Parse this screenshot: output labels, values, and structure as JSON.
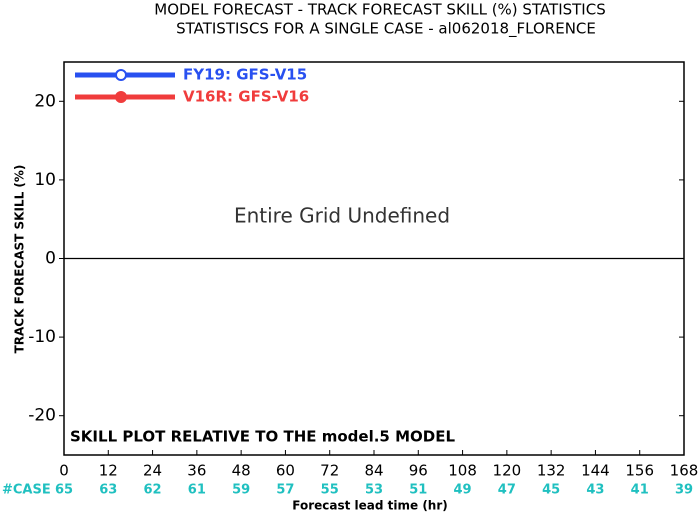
{
  "chart_data": {
    "type": "line",
    "title": "MODEL FORECAST - TRACK FORECAST SKILL (%) STATISTICS",
    "subtitle": "STATISTISCS FOR A SINGLE CASE - al062018_FLORENCE",
    "y_label": "TRACK FORECAST SKILL (%)",
    "x_label": "Forecast lead time (hr)",
    "annotations": [
      "Entire Grid Undefined",
      "SKILL PLOT RELATIVE TO THE model.5 MODEL"
    ],
    "case_label": "#CASE",
    "cases": [
      65,
      63,
      62,
      61,
      59,
      57,
      55,
      53,
      51,
      49,
      47,
      45,
      43,
      41,
      39
    ],
    "x": [
      0,
      12,
      24,
      36,
      48,
      60,
      72,
      84,
      96,
      108,
      120,
      132,
      144,
      156,
      168
    ],
    "xlim": [
      0,
      168
    ],
    "xticks": [
      0,
      12,
      24,
      36,
      48,
      60,
      72,
      84,
      96,
      108,
      120,
      132,
      144,
      156,
      168
    ],
    "ylim": [
      -25,
      25
    ],
    "yticks": [
      -20,
      -10,
      0,
      10,
      20
    ],
    "series": [
      {
        "name": "FY19: GFS-V15",
        "color": "#2850f0",
        "values": [
          null,
          null,
          null,
          null,
          null,
          null,
          null,
          null,
          null,
          null,
          null,
          null,
          null,
          null,
          null
        ]
      },
      {
        "name": "V16R: GFS-V16",
        "color": "#f03c3c",
        "values": [
          null,
          null,
          null,
          null,
          null,
          null,
          null,
          null,
          null,
          null,
          null,
          null,
          null,
          null,
          null
        ]
      }
    ]
  }
}
